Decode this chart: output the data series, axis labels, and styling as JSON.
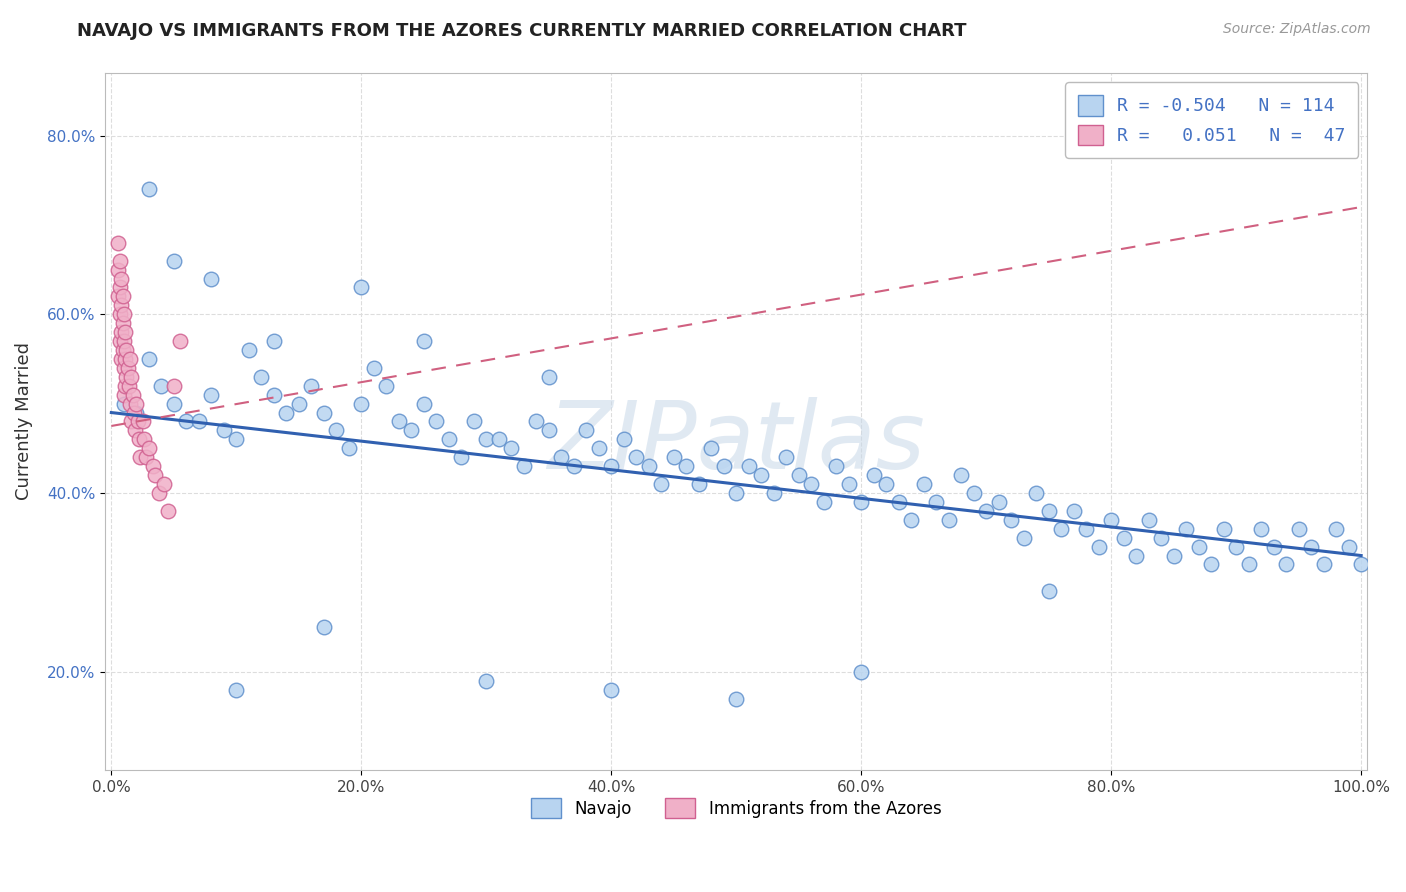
{
  "title": "NAVAJO VS IMMIGRANTS FROM THE AZORES CURRENTLY MARRIED CORRELATION CHART",
  "source_text": "Source: ZipAtlas.com",
  "ylabel": "Currently Married",
  "xlim": [
    -0.005,
    1.005
  ],
  "ylim": [
    0.09,
    0.87
  ],
  "xtick_vals": [
    0.0,
    0.2,
    0.4,
    0.6,
    0.8,
    1.0
  ],
  "ytick_vals": [
    0.2,
    0.4,
    0.6,
    0.8
  ],
  "ytick_labels": [
    "20.0%",
    "40.0%",
    "60.0%",
    "80.0%"
  ],
  "xtick_labels": [
    "0.0%",
    "20.0%",
    "40.0%",
    "60.0%",
    "80.0%",
    "100.0%"
  ],
  "navajo_face_color": "#b8d4f0",
  "navajo_edge_color": "#6090cc",
  "azores_face_color": "#f0b0c8",
  "azores_edge_color": "#d06090",
  "trend_navajo_color": "#3060b0",
  "trend_azores_color": "#d06080",
  "R_navajo": -0.504,
  "N_navajo": 114,
  "R_azores": 0.051,
  "N_azores": 47,
  "legend_navajo": "Navajo",
  "legend_azores": "Immigrants from the Azores",
  "watermark": "ZIPatlas",
  "nav_trend_x0": 0.0,
  "nav_trend_y0": 0.49,
  "nav_trend_x1": 1.0,
  "nav_trend_y1": 0.33,
  "az_trend_x0": 0.0,
  "az_trend_y0": 0.475,
  "az_trend_x1": 1.0,
  "az_trend_y1": 0.72,
  "navajo_x": [
    0.01,
    0.02,
    0.03,
    0.04,
    0.05,
    0.06,
    0.07,
    0.08,
    0.09,
    0.1,
    0.11,
    0.12,
    0.13,
    0.14,
    0.15,
    0.16,
    0.17,
    0.18,
    0.19,
    0.2,
    0.21,
    0.22,
    0.23,
    0.24,
    0.25,
    0.26,
    0.27,
    0.28,
    0.29,
    0.3,
    0.31,
    0.32,
    0.33,
    0.34,
    0.35,
    0.36,
    0.37,
    0.38,
    0.39,
    0.4,
    0.41,
    0.42,
    0.43,
    0.44,
    0.45,
    0.46,
    0.47,
    0.48,
    0.49,
    0.5,
    0.51,
    0.52,
    0.53,
    0.54,
    0.55,
    0.56,
    0.57,
    0.58,
    0.59,
    0.6,
    0.61,
    0.62,
    0.63,
    0.64,
    0.65,
    0.66,
    0.67,
    0.68,
    0.69,
    0.7,
    0.71,
    0.72,
    0.73,
    0.74,
    0.75,
    0.76,
    0.77,
    0.78,
    0.79,
    0.8,
    0.81,
    0.82,
    0.83,
    0.84,
    0.85,
    0.86,
    0.87,
    0.88,
    0.89,
    0.9,
    0.91,
    0.92,
    0.93,
    0.94,
    0.95,
    0.96,
    0.97,
    0.98,
    0.99,
    1.0,
    0.03,
    0.05,
    0.08,
    0.1,
    0.13,
    0.17,
    0.2,
    0.25,
    0.3,
    0.35,
    0.4,
    0.5,
    0.6,
    0.75
  ],
  "navajo_y": [
    0.5,
    0.49,
    0.55,
    0.52,
    0.5,
    0.48,
    0.48,
    0.51,
    0.47,
    0.46,
    0.56,
    0.53,
    0.51,
    0.49,
    0.5,
    0.52,
    0.49,
    0.47,
    0.45,
    0.5,
    0.54,
    0.52,
    0.48,
    0.47,
    0.5,
    0.48,
    0.46,
    0.44,
    0.48,
    0.46,
    0.46,
    0.45,
    0.43,
    0.48,
    0.47,
    0.44,
    0.43,
    0.47,
    0.45,
    0.43,
    0.46,
    0.44,
    0.43,
    0.41,
    0.44,
    0.43,
    0.41,
    0.45,
    0.43,
    0.4,
    0.43,
    0.42,
    0.4,
    0.44,
    0.42,
    0.41,
    0.39,
    0.43,
    0.41,
    0.39,
    0.42,
    0.41,
    0.39,
    0.37,
    0.41,
    0.39,
    0.37,
    0.42,
    0.4,
    0.38,
    0.39,
    0.37,
    0.35,
    0.4,
    0.38,
    0.36,
    0.38,
    0.36,
    0.34,
    0.37,
    0.35,
    0.33,
    0.37,
    0.35,
    0.33,
    0.36,
    0.34,
    0.32,
    0.36,
    0.34,
    0.32,
    0.36,
    0.34,
    0.32,
    0.36,
    0.34,
    0.32,
    0.36,
    0.34,
    0.32,
    0.74,
    0.66,
    0.64,
    0.18,
    0.57,
    0.25,
    0.63,
    0.57,
    0.19,
    0.53,
    0.18,
    0.17,
    0.2,
    0.29
  ],
  "azores_x": [
    0.005,
    0.005,
    0.005,
    0.007,
    0.007,
    0.007,
    0.007,
    0.008,
    0.008,
    0.008,
    0.008,
    0.009,
    0.009,
    0.009,
    0.01,
    0.01,
    0.01,
    0.01,
    0.011,
    0.011,
    0.011,
    0.012,
    0.012,
    0.013,
    0.014,
    0.015,
    0.015,
    0.016,
    0.016,
    0.017,
    0.018,
    0.019,
    0.02,
    0.021,
    0.022,
    0.023,
    0.025,
    0.026,
    0.028,
    0.03,
    0.033,
    0.035,
    0.038,
    0.042,
    0.045,
    0.05,
    0.055
  ],
  "azores_y": [
    0.68,
    0.65,
    0.62,
    0.66,
    0.63,
    0.6,
    0.57,
    0.64,
    0.61,
    0.58,
    0.55,
    0.62,
    0.59,
    0.56,
    0.6,
    0.57,
    0.54,
    0.51,
    0.58,
    0.55,
    0.52,
    0.56,
    0.53,
    0.54,
    0.52,
    0.55,
    0.5,
    0.53,
    0.48,
    0.51,
    0.49,
    0.47,
    0.5,
    0.48,
    0.46,
    0.44,
    0.48,
    0.46,
    0.44,
    0.45,
    0.43,
    0.42,
    0.4,
    0.41,
    0.38,
    0.52,
    0.57
  ]
}
